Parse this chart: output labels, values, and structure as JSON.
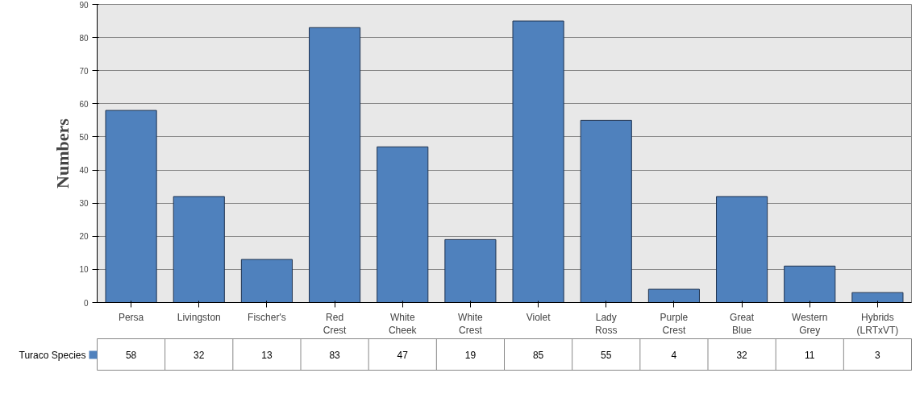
{
  "chart_data": {
    "type": "bar",
    "ylabel": "Numbers",
    "categories": [
      "Persa",
      "Livingston",
      "Fischer's",
      "Red Crest",
      "White Cheek",
      "White Crest",
      "Violet",
      "Lady Ross",
      "Purple Crest",
      "Great Blue",
      "Western Grey",
      "Hybrids (LRTxVT)"
    ],
    "series": [
      {
        "name": "Turaco Species",
        "color": "#4f81bd",
        "values": [
          58,
          32,
          13,
          83,
          47,
          19,
          85,
          55,
          4,
          32,
          11,
          3
        ]
      }
    ],
    "ylim": [
      0,
      90
    ],
    "yticks": [
      0,
      10,
      20,
      30,
      40,
      50,
      60,
      70,
      80,
      90
    ],
    "grid": "y",
    "data_labels": true
  }
}
